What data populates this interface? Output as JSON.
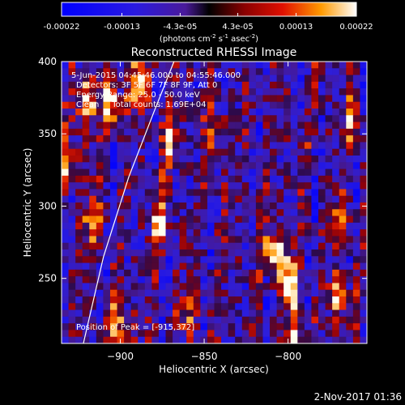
{
  "chart_data": {
    "type": "heatmap",
    "title": "Reconstructed RHESSI Image",
    "xlabel": "Heliocentric X (arcsec)",
    "ylabel": "Heliocentric Y (arcsec)",
    "xlim": [
      -935,
      -753
    ],
    "ylim": [
      205,
      400
    ],
    "xticks": [
      -900,
      -850,
      -800
    ],
    "yticks": [
      250,
      300,
      350,
      400
    ],
    "colorbar": {
      "ticks": [
        "-0.00022",
        "-0.00013",
        "-4.3e-05",
        "4.3e-05",
        "0.00013",
        "0.00022"
      ],
      "values": [
        -0.00022,
        -0.00013,
        -4.3e-05,
        4.3e-05,
        0.00013,
        0.00022
      ],
      "vmin": -0.00022,
      "vmax": 0.00022,
      "unit_base": "(photons cm",
      "unit_e1": "-2",
      "unit_mid": " s",
      "unit_e2": "-1",
      "unit_mid2": " asec",
      "unit_e3": "-2",
      "unit_end": ")"
    },
    "annotations": [
      "5-Jun-2015 04:45:46.000 to 04:55:46.000",
      "Detectors: 3F 5F 6F 7F 8F 9F, Att 0",
      "Energy Range: 25.0 - 50.0 keV",
      "Clean     Total counts: 1.69E+04"
    ],
    "peak_label": "Position of Peak = [-915,372]",
    "peak": [
      -915,
      372
    ],
    "limb_curve": [
      [
        -922,
        205
      ],
      [
        -910,
        265
      ],
      [
        -895,
        320
      ],
      [
        -880,
        365
      ],
      [
        -868,
        400
      ]
    ],
    "bright_sources": [
      {
        "x": -920,
        "y": 372,
        "strength": 1.0
      },
      {
        "x": -905,
        "y": 370,
        "strength": 0.85
      },
      {
        "x": -890,
        "y": 385,
        "strength": 0.8
      },
      {
        "x": -915,
        "y": 290,
        "strength": 0.85
      },
      {
        "x": -877,
        "y": 290,
        "strength": 0.75
      },
      {
        "x": -900,
        "y": 215,
        "strength": 0.7
      },
      {
        "x": -870,
        "y": 345,
        "strength": 0.6
      },
      {
        "x": -843,
        "y": 350,
        "strength": 0.55
      },
      {
        "x": -808,
        "y": 270,
        "strength": 0.9
      },
      {
        "x": -800,
        "y": 250,
        "strength": 0.9
      },
      {
        "x": -795,
        "y": 215,
        "strength": 0.75
      },
      {
        "x": -770,
        "y": 240,
        "strength": 0.7
      },
      {
        "x": -762,
        "y": 360,
        "strength": 0.55
      },
      {
        "x": -768,
        "y": 290,
        "strength": 0.5
      },
      {
        "x": -930,
        "y": 330,
        "strength": 0.6
      },
      {
        "x": -860,
        "y": 225,
        "strength": 0.45
      }
    ]
  },
  "footer": {
    "date": "2-Nov-2017 01:36"
  }
}
